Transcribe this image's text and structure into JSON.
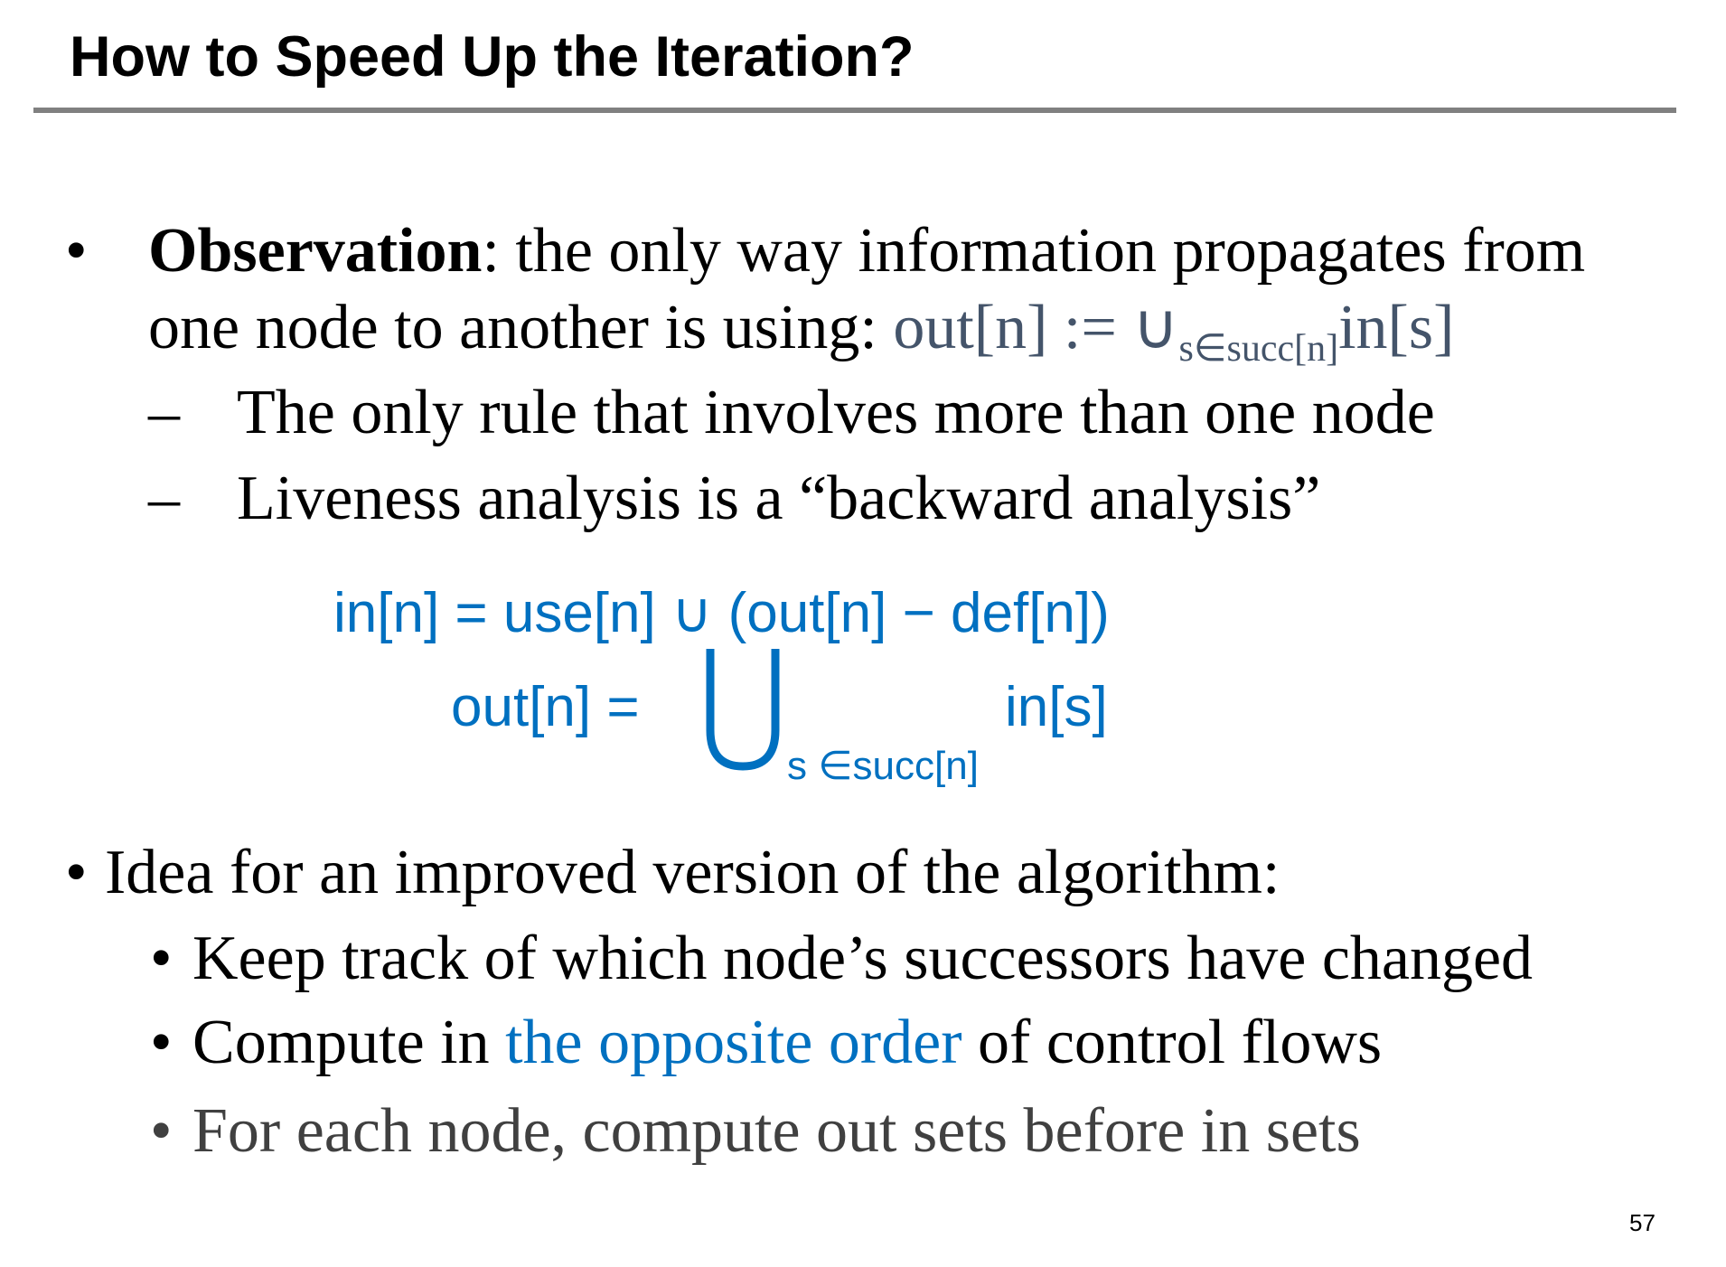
{
  "title": "How to Speed Up the Iteration?",
  "bullet1": {
    "bold": "Observation",
    "line1_rest": ": the only way information propagates from",
    "line2_text": "one node to another is using: ",
    "formula_main": "out[n] := ∪",
    "formula_sub": "s∈succ[n]",
    "formula_end": "in[s]",
    "subitems": [
      "The only rule that involves more than one node",
      "Liveness analysis is a “backward analysis”"
    ]
  },
  "equations": {
    "in_eq": "in[n] = use[n] ∪ (out[n] − def[n])",
    "out_lhs": "out[n] =",
    "out_sub": "s ∈succ[n]",
    "out_rhs": "in[s]"
  },
  "bullet2": {
    "text": "Idea for an improved version of the algorithm:",
    "subitems": [
      {
        "text": "Keep track of which node’s successors have changed"
      },
      {
        "pre": "Compute in ",
        "highlight": "the opposite order",
        "post": " of control flows"
      },
      {
        "text": "For each node, compute out sets before in sets"
      }
    ]
  },
  "bullet_glyph": "•",
  "dash_glyph": "–",
  "page_number": "57",
  "colors": {
    "accent": "#0070C0",
    "formula_gray": "#44546A",
    "rule": "#808080",
    "dim_text": "#404040"
  }
}
